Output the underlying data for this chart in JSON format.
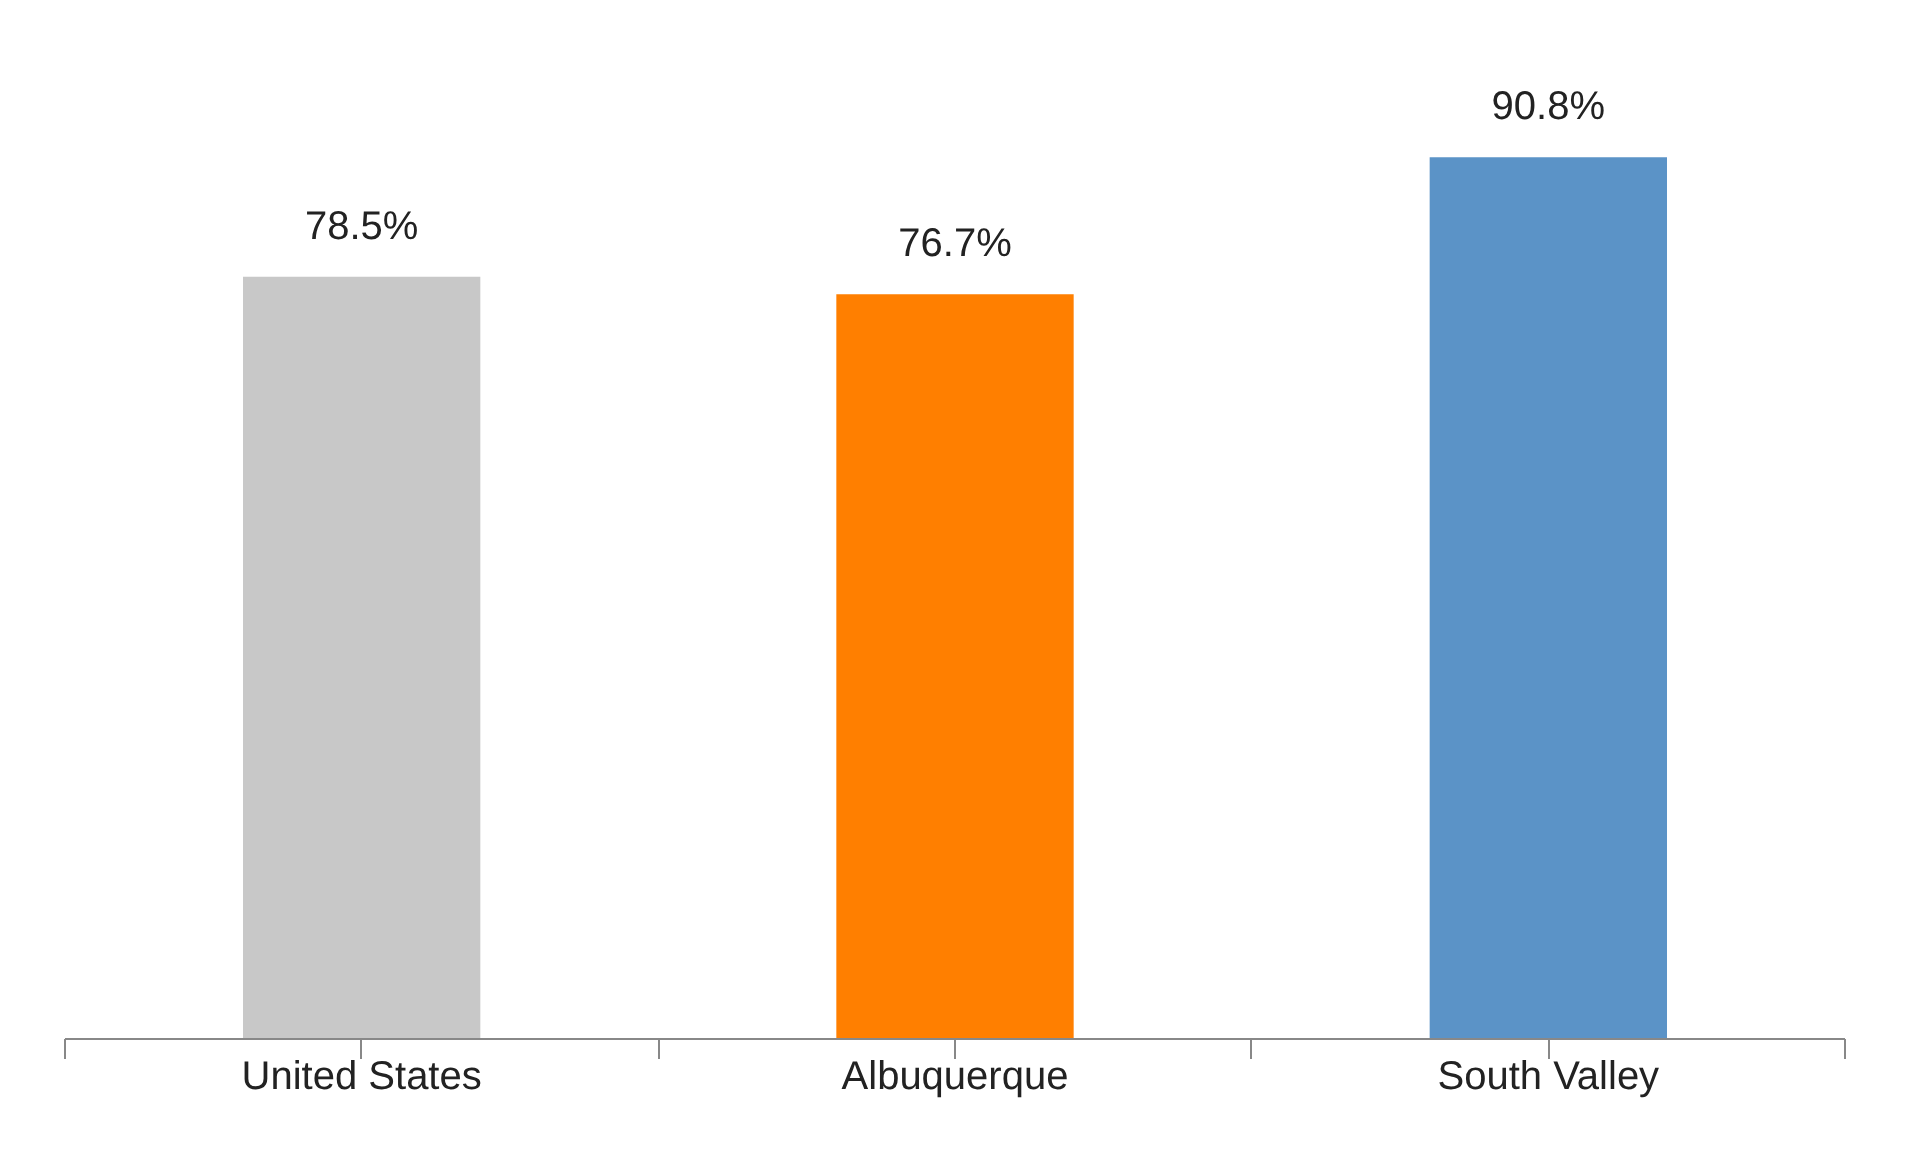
{
  "chart_data": {
    "type": "bar",
    "categories": [
      "United States",
      "Albuquerque",
      "South Valley"
    ],
    "values": [
      78.5,
      76.7,
      90.8
    ],
    "colors": [
      "#c8c8c8",
      "#ff7f00",
      "#5b93c7"
    ],
    "value_labels": [
      "78.5%",
      "76.7%",
      "90.8%"
    ],
    "grid": false
  }
}
